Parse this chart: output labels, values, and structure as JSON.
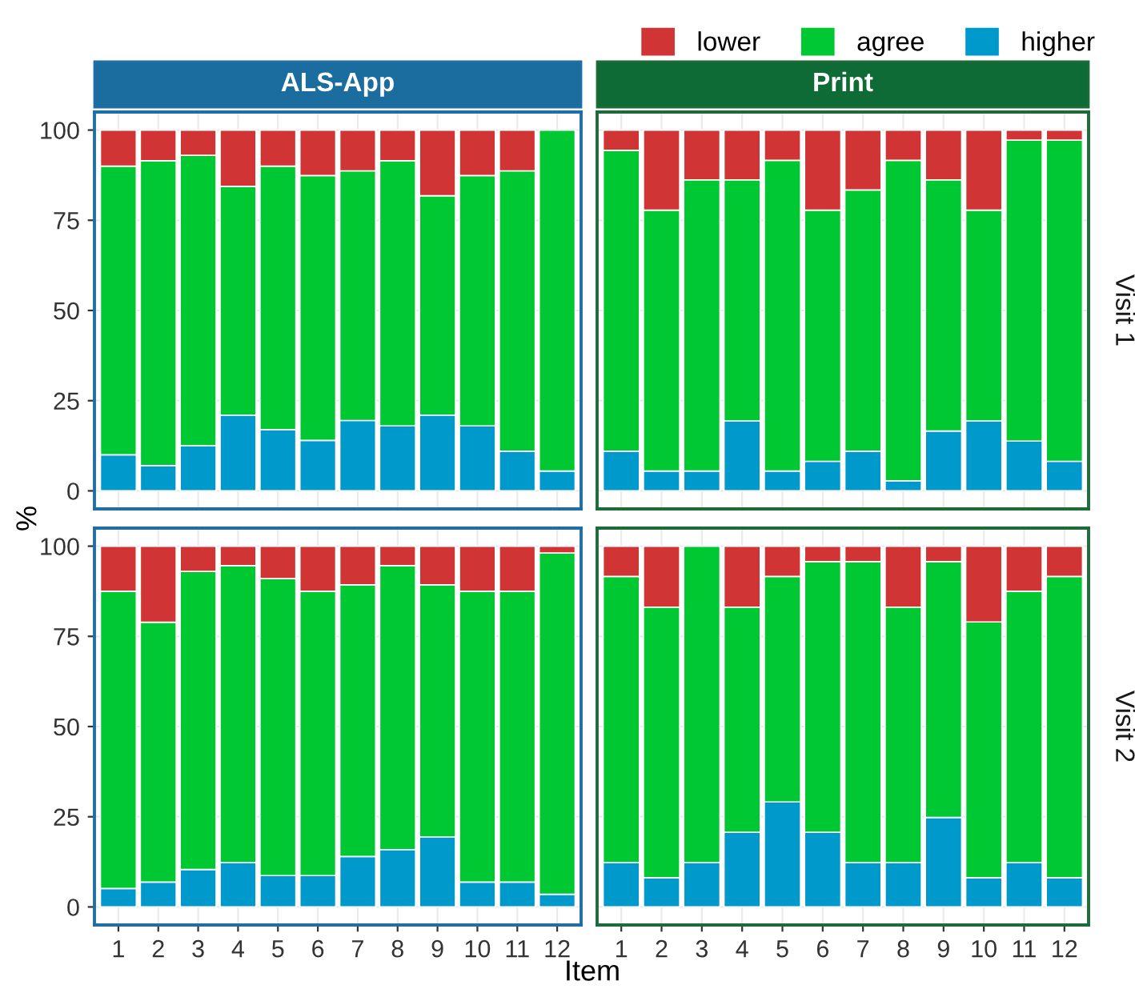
{
  "chart_data": [
    {
      "type": "bar",
      "title": "ALS-App",
      "ylabel": "%",
      "stacked": true,
      "categories": [
        "1",
        "2",
        "3",
        "4",
        "5",
        "6",
        "7",
        "8",
        "9",
        "10",
        "11",
        "12"
      ],
      "ylim": [
        -5,
        105
      ],
      "yticks": [
        0,
        25,
        50,
        75,
        100
      ],
      "grid": true,
      "tick_labels": "y",
      "series": [
        {
          "color": "#0099cc",
          "values": [
            10,
            7,
            12.5,
            21,
            17,
            14,
            19.5,
            18,
            21,
            18,
            11,
            5.5
          ]
        },
        {
          "color": "#00c832",
          "values": [
            80,
            84.5,
            80.5,
            63.4,
            73,
            73.4,
            69.2,
            73.5,
            60.8,
            69.4,
            77.7,
            94.5
          ]
        },
        {
          "color": "#d03434",
          "values": [
            10,
            8.5,
            7,
            15.6,
            10,
            12.6,
            11.3,
            8.5,
            18.2,
            12.6,
            11.3,
            0
          ]
        }
      ]
    },
    {
      "type": "bar",
      "title": "Print",
      "y2label": "Visit 1",
      "stacked": true,
      "categories": [
        "1",
        "2",
        "3",
        "4",
        "5",
        "6",
        "7",
        "8",
        "9",
        "10",
        "11",
        "12"
      ],
      "ylim": [
        -5,
        105
      ],
      "yticks": [
        0,
        25,
        50,
        75,
        100
      ],
      "grid": true,
      "tick_labels": false,
      "legend": "top",
      "series": [
        {
          "name": "higher",
          "color": "#0099cc",
          "values": [
            11,
            5.5,
            5.5,
            19.4,
            5.5,
            8.2,
            11,
            2.8,
            16.6,
            19.4,
            13.8,
            8.2
          ]
        },
        {
          "name": "agree",
          "color": "#00c832",
          "values": [
            83.4,
            72.3,
            80.7,
            66.8,
            86.1,
            69.6,
            72.4,
            88.8,
            69.6,
            58.4,
            83.4,
            89
          ]
        },
        {
          "name": "lower",
          "color": "#d03434",
          "values": [
            5.6,
            22.2,
            13.8,
            13.8,
            8.4,
            22.2,
            16.6,
            8.4,
            13.8,
            22.2,
            2.8,
            2.8
          ]
        }
      ]
    },
    {
      "type": "bar",
      "xlabel": "Item",
      "stacked": true,
      "categories": [
        "1",
        "2",
        "3",
        "4",
        "5",
        "6",
        "7",
        "8",
        "9",
        "10",
        "11",
        "12"
      ],
      "ylim": [
        -5,
        105
      ],
      "yticks": [
        0,
        25,
        50,
        75,
        100
      ],
      "grid": true,
      "series": [
        {
          "color": "#0099cc",
          "values": [
            5.1,
            6.9,
            10.4,
            12.3,
            8.7,
            8.7,
            14,
            15.9,
            19.4,
            6.9,
            6.9,
            3.5
          ]
        },
        {
          "color": "#00c832",
          "values": [
            82.4,
            72,
            82.6,
            82.3,
            82.3,
            78.8,
            75.3,
            78.7,
            69.9,
            80.6,
            80.6,
            94.6
          ]
        },
        {
          "color": "#d03434",
          "values": [
            12.5,
            21.1,
            7,
            5.4,
            9,
            12.5,
            10.7,
            5.4,
            10.7,
            12.5,
            12.5,
            1.9
          ]
        }
      ]
    },
    {
      "type": "bar",
      "y2label": "Visit 2",
      "stacked": true,
      "categories": [
        "1",
        "2",
        "3",
        "4",
        "5",
        "6",
        "7",
        "8",
        "9",
        "10",
        "11",
        "12"
      ],
      "ylim": [
        -5,
        105
      ],
      "yticks": [
        0,
        25,
        50,
        75,
        100
      ],
      "grid": true,
      "tick_labels": "x",
      "series": [
        {
          "color": "#0099cc",
          "values": [
            12.3,
            8.1,
            12.3,
            20.7,
            29.1,
            20.7,
            12.3,
            12.3,
            24.8,
            8.1,
            12.3,
            8.1
          ]
        },
        {
          "color": "#00c832",
          "values": [
            79.3,
            75,
            87.7,
            62.4,
            62.5,
            75,
            83.4,
            70.8,
            70.9,
            70.9,
            75.2,
            83.5
          ]
        },
        {
          "color": "#d03434",
          "values": [
            8.4,
            16.9,
            0,
            16.9,
            8.4,
            4.3,
            4.3,
            16.9,
            4.3,
            21,
            12.5,
            8.4
          ]
        }
      ]
    }
  ]
}
